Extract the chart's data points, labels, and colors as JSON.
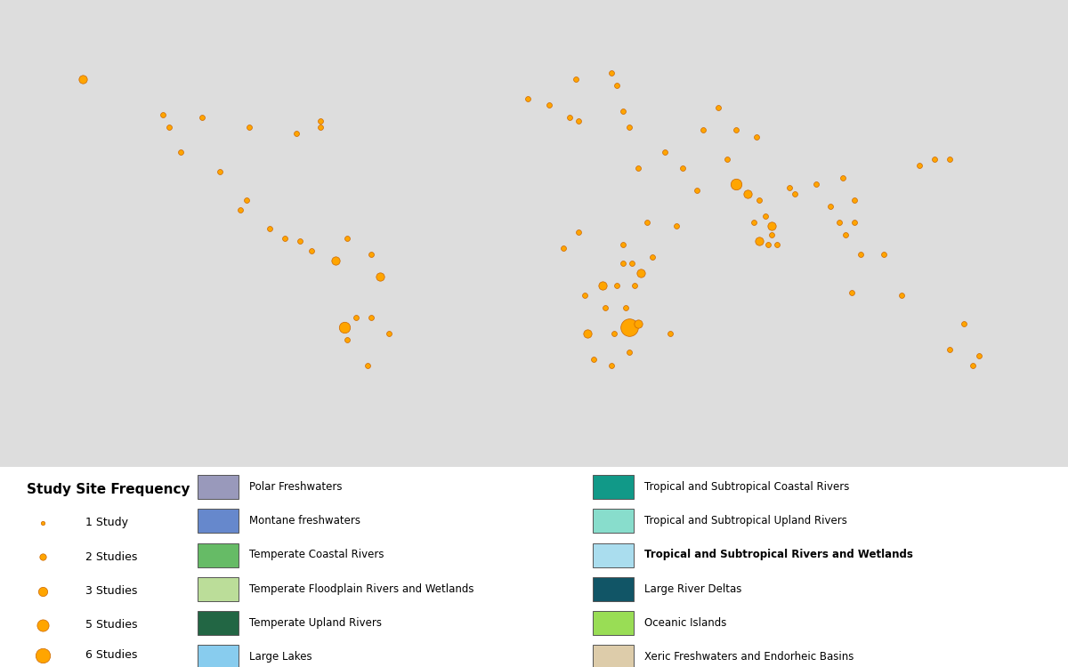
{
  "figure_size": [
    12,
    7.5
  ],
  "dpi": 100,
  "habitat_colors": {
    "Polar Freshwaters": "#9999bb",
    "Montane freshwaters": "#6688cc",
    "Temperate Coastal Rivers": "#66bb66",
    "Temperate Floodplain Rivers and Wetlands": "#bbdd99",
    "Temperate Upland Rivers": "#226644",
    "Large Lakes": "#88ccee",
    "Tropical and Subtropical Coastal Rivers": "#119988",
    "Tropical and Subtropical Upland Rivers": "#88ddcc",
    "Tropical and Subtropical Rivers and Wetlands": "#aaddee",
    "Large River Deltas": "#115566",
    "Oceanic Islands": "#99dd55",
    "Xeric Freshwaters and Endorheic Basins": "#ddccaa"
  },
  "country_habitat": {
    "Russia": "Polar Freshwaters",
    "Canada": "Polar Freshwaters",
    "Greenland": "Polar Freshwaters",
    "Iceland": "Polar Freshwaters",
    "Norway": "Polar Freshwaters",
    "Finland": "Polar Freshwaters",
    "Sweden": "Polar Freshwaters",
    "Switzerland": "Montane freshwaters",
    "Austria": "Montane freshwaters",
    "Nepal": "Montane freshwaters",
    "Bhutan": "Montane freshwaters",
    "Tajikistan": "Montane freshwaters",
    "Kyrgyzstan": "Montane freshwaters",
    "United Kingdom": "Temperate Coastal Rivers",
    "Ireland": "Temperate Coastal Rivers",
    "France": "Temperate Coastal Rivers",
    "Spain": "Temperate Coastal Rivers",
    "Portugal": "Temperate Coastal Rivers",
    "Chile": "Temperate Coastal Rivers",
    "New Zealand": "Temperate Coastal Rivers",
    "Japan": "Temperate Coastal Rivers",
    "South Korea": "Temperate Coastal Rivers",
    "Korea": "Temperate Coastal Rivers",
    "North Korea": "Temperate Coastal Rivers",
    "Taiwan": "Temperate Coastal Rivers",
    "Germany": "Temperate Floodplain Rivers and Wetlands",
    "Poland": "Temperate Floodplain Rivers and Wetlands",
    "Netherlands": "Temperate Floodplain Rivers and Wetlands",
    "Belgium": "Temperate Floodplain Rivers and Wetlands",
    "Denmark": "Temperate Floodplain Rivers and Wetlands",
    "Ukraine": "Temperate Floodplain Rivers and Wetlands",
    "Hungary": "Temperate Floodplain Rivers and Wetlands",
    "Romania": "Temperate Floodplain Rivers and Wetlands",
    "Belarus": "Temperate Floodplain Rivers and Wetlands",
    "Czech Republic": "Temperate Floodplain Rivers and Wetlands",
    "Czechia": "Temperate Floodplain Rivers and Wetlands",
    "Slovakia": "Temperate Floodplain Rivers and Wetlands",
    "Lithuania": "Temperate Floodplain Rivers and Wetlands",
    "Latvia": "Temperate Floodplain Rivers and Wetlands",
    "Estonia": "Temperate Floodplain Rivers and Wetlands",
    "Moldova": "Temperate Floodplain Rivers and Wetlands",
    "Luxembourg": "Temperate Floodplain Rivers and Wetlands",
    "United States of America": "Temperate Upland Rivers",
    "Italy": "Temperate Upland Rivers",
    "Greece": "Temperate Upland Rivers",
    "Bulgaria": "Temperate Upland Rivers",
    "Serbia": "Temperate Upland Rivers",
    "Croatia": "Temperate Upland Rivers",
    "Slovenia": "Temperate Upland Rivers",
    "Bosnia and Herzegovina": "Temperate Upland Rivers",
    "Albania": "Temperate Upland Rivers",
    "Macedonia": "Temperate Upland Rivers",
    "North Macedonia": "Temperate Upland Rivers",
    "Montenegro": "Temperate Upland Rivers",
    "Kosovo": "Temperate Upland Rivers",
    "Turkey": "Temperate Upland Rivers",
    "China": "Temperate Upland Rivers",
    "Argentina": "Temperate Upland Rivers",
    "South Africa": "Temperate Upland Rivers",
    "Morocco": "Temperate Upland Rivers",
    "Algeria": "Temperate Upland Rivers",
    "Tunisia": "Temperate Upland Rivers",
    "Tanzania": "Large Lakes",
    "Uganda": "Large Lakes",
    "Malawi": "Large Lakes",
    "Burundi": "Large Lakes",
    "Rwanda": "Large Lakes",
    "Dem. Rep. Congo": "Large Lakes",
    "Democratic Republic of the Congo": "Large Lakes",
    "Brazil": "Tropical and Subtropical Coastal Rivers",
    "Colombia": "Tropical and Subtropical Coastal Rivers",
    "Venezuela": "Tropical and Subtropical Coastal Rivers",
    "Ecuador": "Tropical and Subtropical Coastal Rivers",
    "Peru": "Tropical and Subtropical Coastal Rivers",
    "Guyana": "Tropical and Subtropical Coastal Rivers",
    "Suriname": "Tropical and Subtropical Coastal Rivers",
    "French Guiana": "Tropical and Subtropical Coastal Rivers",
    "Nigeria": "Tropical and Subtropical Coastal Rivers",
    "Ghana": "Tropical and Subtropical Coastal Rivers",
    "Ivory Coast": "Tropical and Subtropical Coastal Rivers",
    "Cote d'Ivoire": "Tropical and Subtropical Coastal Rivers",
    "Cameroon": "Tropical and Subtropical Coastal Rivers",
    "Gabon": "Tropical and Subtropical Coastal Rivers",
    "Republic of Congo": "Tropical and Subtropical Coastal Rivers",
    "Congo": "Tropical and Subtropical Coastal Rivers",
    "Mozambique": "Tropical and Subtropical Coastal Rivers",
    "Madagascar": "Tropical and Subtropical Coastal Rivers",
    "Sri Lanka": "Tropical and Subtropical Coastal Rivers",
    "Myanmar": "Tropical and Subtropical Coastal Rivers",
    "Thailand": "Tropical and Subtropical Coastal Rivers",
    "Vietnam": "Tropical and Subtropical Coastal Rivers",
    "Malaysia": "Tropical and Subtropical Coastal Rivers",
    "Indonesia": "Tropical and Subtropical Coastal Rivers",
    "Philippines": "Tropical and Subtropical Coastal Rivers",
    "Papua New Guinea": "Tropical and Subtropical Coastal Rivers",
    "Australia": "Tropical and Subtropical Coastal Rivers",
    "Liberia": "Tropical and Subtropical Coastal Rivers",
    "Sierra Leone": "Tropical and Subtropical Coastal Rivers",
    "Guinea-Bissau": "Tropical and Subtropical Coastal Rivers",
    "Equatorial Guinea": "Tropical and Subtropical Coastal Rivers",
    "Sao Tome and Principe": "Tropical and Subtropical Coastal Rivers",
    "Guatemala": "Tropical and Subtropical Upland Rivers",
    "Belize": "Tropical and Subtropical Upland Rivers",
    "Honduras": "Tropical and Subtropical Upland Rivers",
    "Nicaragua": "Tropical and Subtropical Upland Rivers",
    "Costa Rica": "Tropical and Subtropical Upland Rivers",
    "Panama": "Tropical and Subtropical Upland Rivers",
    "Mexico": "Tropical and Subtropical Upland Rivers",
    "Cuba": "Tropical and Subtropical Upland Rivers",
    "Haiti": "Tropical and Subtropical Upland Rivers",
    "Dominican Republic": "Tropical and Subtropical Upland Rivers",
    "Jamaica": "Tropical and Subtropical Upland Rivers",
    "India": "Tropical and Subtropical Upland Rivers",
    "Cambodia": "Tropical and Subtropical Upland Rivers",
    "Laos": "Tropical and Subtropical Upland Rivers",
    "Ethiopia": "Tropical and Subtropical Upland Rivers",
    "Kenya": "Tropical and Subtropical Upland Rivers",
    "Zimbabwe": "Tropical and Subtropical Upland Rivers",
    "Zambia": "Tropical and Subtropical Upland Rivers",
    "Angola": "Tropical and Subtropical Upland Rivers",
    "Botswana": "Tropical and Subtropical Upland Rivers",
    "Namibia": "Tropical and Subtropical Upland Rivers",
    "Togo": "Tropical and Subtropical Upland Rivers",
    "Benin": "Tropical and Subtropical Upland Rivers",
    "Bolivia": "Tropical and Subtropical Rivers and Wetlands",
    "Paraguay": "Tropical and Subtropical Rivers and Wetlands",
    "Sudan": "Tropical and Subtropical Rivers and Wetlands",
    "South Sudan": "Tropical and Subtropical Rivers and Wetlands",
    "Central African Republic": "Tropical and Subtropical Rivers and Wetlands",
    "Pakistan": "Tropical and Subtropical Rivers and Wetlands",
    "Bangladesh": "Large River Deltas",
    "Egypt": "Large River Deltas",
    "Iraq": "Large River Deltas",
    "Azerbaijan": "Large River Deltas",
    "Kazakhstan": "Large River Deltas",
    "Uzbekistan": "Large River Deltas",
    "Turkmenistan": "Large River Deltas",
    "Libya": "Xeric Freshwaters and Endorheic Basins",
    "Mali": "Xeric Freshwaters and Endorheic Basins",
    "Niger": "Xeric Freshwaters and Endorheic Basins",
    "Chad": "Xeric Freshwaters and Endorheic Basins",
    "Mauritania": "Xeric Freshwaters and Endorheic Basins",
    "Saudi Arabia": "Xeric Freshwaters and Endorheic Basins",
    "Yemen": "Xeric Freshwaters and Endorheic Basins",
    "Oman": "Xeric Freshwaters and Endorheic Basins",
    "United Arab Emirates": "Xeric Freshwaters and Endorheic Basins",
    "UAE": "Xeric Freshwaters and Endorheic Basins",
    "Qatar": "Xeric Freshwaters and Endorheic Basins",
    "Kuwait": "Xeric Freshwaters and Endorheic Basins",
    "Jordan": "Xeric Freshwaters and Endorheic Basins",
    "Israel": "Xeric Freshwaters and Endorheic Basins",
    "Lebanon": "Xeric Freshwaters and Endorheic Basins",
    "Syria": "Xeric Freshwaters and Endorheic Basins",
    "Iran": "Xeric Freshwaters and Endorheic Basins",
    "Afghanistan": "Xeric Freshwaters and Endorheic Basins",
    "Mongolia": "Xeric Freshwaters and Endorheic Basins",
    "Somalia": "Xeric Freshwaters and Endorheic Basins",
    "Djibouti": "Xeric Freshwaters and Endorheic Basins",
    "Eritrea": "Xeric Freshwaters and Endorheic Basins",
    "Senegal": "Xeric Freshwaters and Endorheic Basins",
    "Guinea": "Xeric Freshwaters and Endorheic Basins",
    "Burkina Faso": "Xeric Freshwaters and Endorheic Basins",
    "Western Sahara": "Xeric Freshwaters and Endorheic Basins",
    "Gambia": "Xeric Freshwaters and Endorheic Basins"
  },
  "study_sites": [
    {
      "lon": -152,
      "lat": 60,
      "studies": 2
    },
    {
      "lon": -125,
      "lat": 49,
      "studies": 1
    },
    {
      "lon": -123,
      "lat": 45,
      "studies": 1
    },
    {
      "lon": -119,
      "lat": 37,
      "studies": 1
    },
    {
      "lon": -106,
      "lat": 31,
      "studies": 1
    },
    {
      "lon": -99,
      "lat": 19,
      "studies": 1
    },
    {
      "lon": -97,
      "lat": 22,
      "studies": 1
    },
    {
      "lon": -89,
      "lat": 13,
      "studies": 1
    },
    {
      "lon": -84,
      "lat": 10,
      "studies": 1
    },
    {
      "lon": -79,
      "lat": 9,
      "studies": 1
    },
    {
      "lon": -75,
      "lat": 6,
      "studies": 1
    },
    {
      "lon": -63,
      "lat": 10,
      "studies": 1
    },
    {
      "lon": -67,
      "lat": 3,
      "studies": 2
    },
    {
      "lon": -55,
      "lat": 5,
      "studies": 1
    },
    {
      "lon": -52,
      "lat": -2,
      "studies": 2
    },
    {
      "lon": -60,
      "lat": -15,
      "studies": 1
    },
    {
      "lon": -55,
      "lat": -15,
      "studies": 1
    },
    {
      "lon": -64,
      "lat": -18,
      "studies": 3
    },
    {
      "lon": -63,
      "lat": -22,
      "studies": 1
    },
    {
      "lon": -49,
      "lat": -20,
      "studies": 1
    },
    {
      "lon": -56,
      "lat": -30,
      "studies": 1
    },
    {
      "lon": -72,
      "lat": 47,
      "studies": 1
    },
    {
      "lon": -72,
      "lat": 45,
      "studies": 1
    },
    {
      "lon": -96,
      "lat": 45,
      "studies": 1
    },
    {
      "lon": -112,
      "lat": 48,
      "studies": 1
    },
    {
      "lon": -80,
      "lat": 43,
      "studies": 1
    },
    {
      "lon": -2,
      "lat": 54,
      "studies": 1
    },
    {
      "lon": 5,
      "lat": 52,
      "studies": 1
    },
    {
      "lon": 12,
      "lat": 48,
      "studies": 1
    },
    {
      "lon": 15,
      "lat": 47,
      "studies": 1
    },
    {
      "lon": 14,
      "lat": 60,
      "studies": 1
    },
    {
      "lon": 26,
      "lat": 62,
      "studies": 1
    },
    {
      "lon": 28,
      "lat": 58,
      "studies": 1
    },
    {
      "lon": 30,
      "lat": 50,
      "studies": 1
    },
    {
      "lon": 32,
      "lat": 45,
      "studies": 1
    },
    {
      "lon": 44,
      "lat": 37,
      "studies": 1
    },
    {
      "lon": 50,
      "lat": 32,
      "studies": 1
    },
    {
      "lon": 35,
      "lat": 32,
      "studies": 1
    },
    {
      "lon": 38,
      "lat": 15,
      "studies": 1
    },
    {
      "lon": 30,
      "lat": 2,
      "studies": 1
    },
    {
      "lon": 28,
      "lat": -5,
      "studies": 1
    },
    {
      "lon": 23,
      "lat": -5,
      "studies": 2
    },
    {
      "lon": 17,
      "lat": -8,
      "studies": 1
    },
    {
      "lon": 24,
      "lat": -12,
      "studies": 1
    },
    {
      "lon": 15,
      "lat": 12,
      "studies": 1
    },
    {
      "lon": 10,
      "lat": 7,
      "studies": 1
    },
    {
      "lon": 36,
      "lat": -1,
      "studies": 2
    },
    {
      "lon": 34,
      "lat": -5,
      "studies": 1
    },
    {
      "lon": 31,
      "lat": -12,
      "studies": 1
    },
    {
      "lon": 27,
      "lat": -20,
      "studies": 1
    },
    {
      "lon": 32,
      "lat": -26,
      "studies": 1
    },
    {
      "lon": 26,
      "lat": -30,
      "studies": 1
    },
    {
      "lon": 20,
      "lat": -28,
      "studies": 1
    },
    {
      "lon": 18,
      "lat": -20,
      "studies": 2
    },
    {
      "lon": 32,
      "lat": -18,
      "studies": 6
    },
    {
      "lon": 35,
      "lat": -17,
      "studies": 2
    },
    {
      "lon": 46,
      "lat": -20,
      "studies": 1
    },
    {
      "lon": 40,
      "lat": 4,
      "studies": 1
    },
    {
      "lon": 33,
      "lat": 2,
      "studies": 1
    },
    {
      "lon": 30,
      "lat": 8,
      "studies": 1
    },
    {
      "lon": 65,
      "lat": 35,
      "studies": 1
    },
    {
      "lon": 68,
      "lat": 27,
      "studies": 3
    },
    {
      "lon": 72,
      "lat": 24,
      "studies": 2
    },
    {
      "lon": 76,
      "lat": 22,
      "studies": 1
    },
    {
      "lon": 78,
      "lat": 17,
      "studies": 1
    },
    {
      "lon": 80,
      "lat": 14,
      "studies": 2
    },
    {
      "lon": 80,
      "lat": 11,
      "studies": 1
    },
    {
      "lon": 82,
      "lat": 8,
      "studies": 1
    },
    {
      "lon": 79,
      "lat": 8,
      "studies": 1
    },
    {
      "lon": 76,
      "lat": 9,
      "studies": 2
    },
    {
      "lon": 74,
      "lat": 15,
      "studies": 1
    },
    {
      "lon": 86,
      "lat": 26,
      "studies": 1
    },
    {
      "lon": 88,
      "lat": 24,
      "studies": 1
    },
    {
      "lon": 95,
      "lat": 27,
      "studies": 1
    },
    {
      "lon": 104,
      "lat": 29,
      "studies": 1
    },
    {
      "lon": 108,
      "lat": 22,
      "studies": 1
    },
    {
      "lon": 100,
      "lat": 20,
      "studies": 1
    },
    {
      "lon": 103,
      "lat": 15,
      "studies": 1
    },
    {
      "lon": 105,
      "lat": 11,
      "studies": 1
    },
    {
      "lon": 108,
      "lat": 15,
      "studies": 1
    },
    {
      "lon": 110,
      "lat": 5,
      "studies": 1
    },
    {
      "lon": 107,
      "lat": -7,
      "studies": 1
    },
    {
      "lon": 118,
      "lat": 5,
      "studies": 1
    },
    {
      "lon": 124,
      "lat": -8,
      "studies": 1
    },
    {
      "lon": 130,
      "lat": 33,
      "studies": 1
    },
    {
      "lon": 135,
      "lat": 35,
      "studies": 1
    },
    {
      "lon": 140,
      "lat": 35,
      "studies": 1
    },
    {
      "lon": 145,
      "lat": -17,
      "studies": 1
    },
    {
      "lon": 140,
      "lat": -25,
      "studies": 1
    },
    {
      "lon": 150,
      "lat": -27,
      "studies": 1
    },
    {
      "lon": 148,
      "lat": -30,
      "studies": 1
    },
    {
      "lon": 57,
      "lat": 44,
      "studies": 1
    },
    {
      "lon": 62,
      "lat": 51,
      "studies": 1
    },
    {
      "lon": 68,
      "lat": 44,
      "studies": 1
    },
    {
      "lon": 75,
      "lat": 42,
      "studies": 1
    },
    {
      "lon": 55,
      "lat": 25,
      "studies": 1
    },
    {
      "lon": 48,
      "lat": 14,
      "studies": 1
    }
  ],
  "size_map": {
    "1": 18,
    "2": 45,
    "3": 80,
    "5": 130,
    "6": 200
  },
  "orange": "#FFA500",
  "orange_edge": "#cc6600",
  "legend_title": "Study Site Frequency",
  "legend_size_labels": [
    "1 Study",
    "2 Studies",
    "3 Studies",
    "5 Studies",
    "6 Studies"
  ],
  "legend_size_pts": [
    18,
    45,
    80,
    130,
    200
  ],
  "bold_habitat": "Tropical and Subtropical Rivers and Wetlands"
}
